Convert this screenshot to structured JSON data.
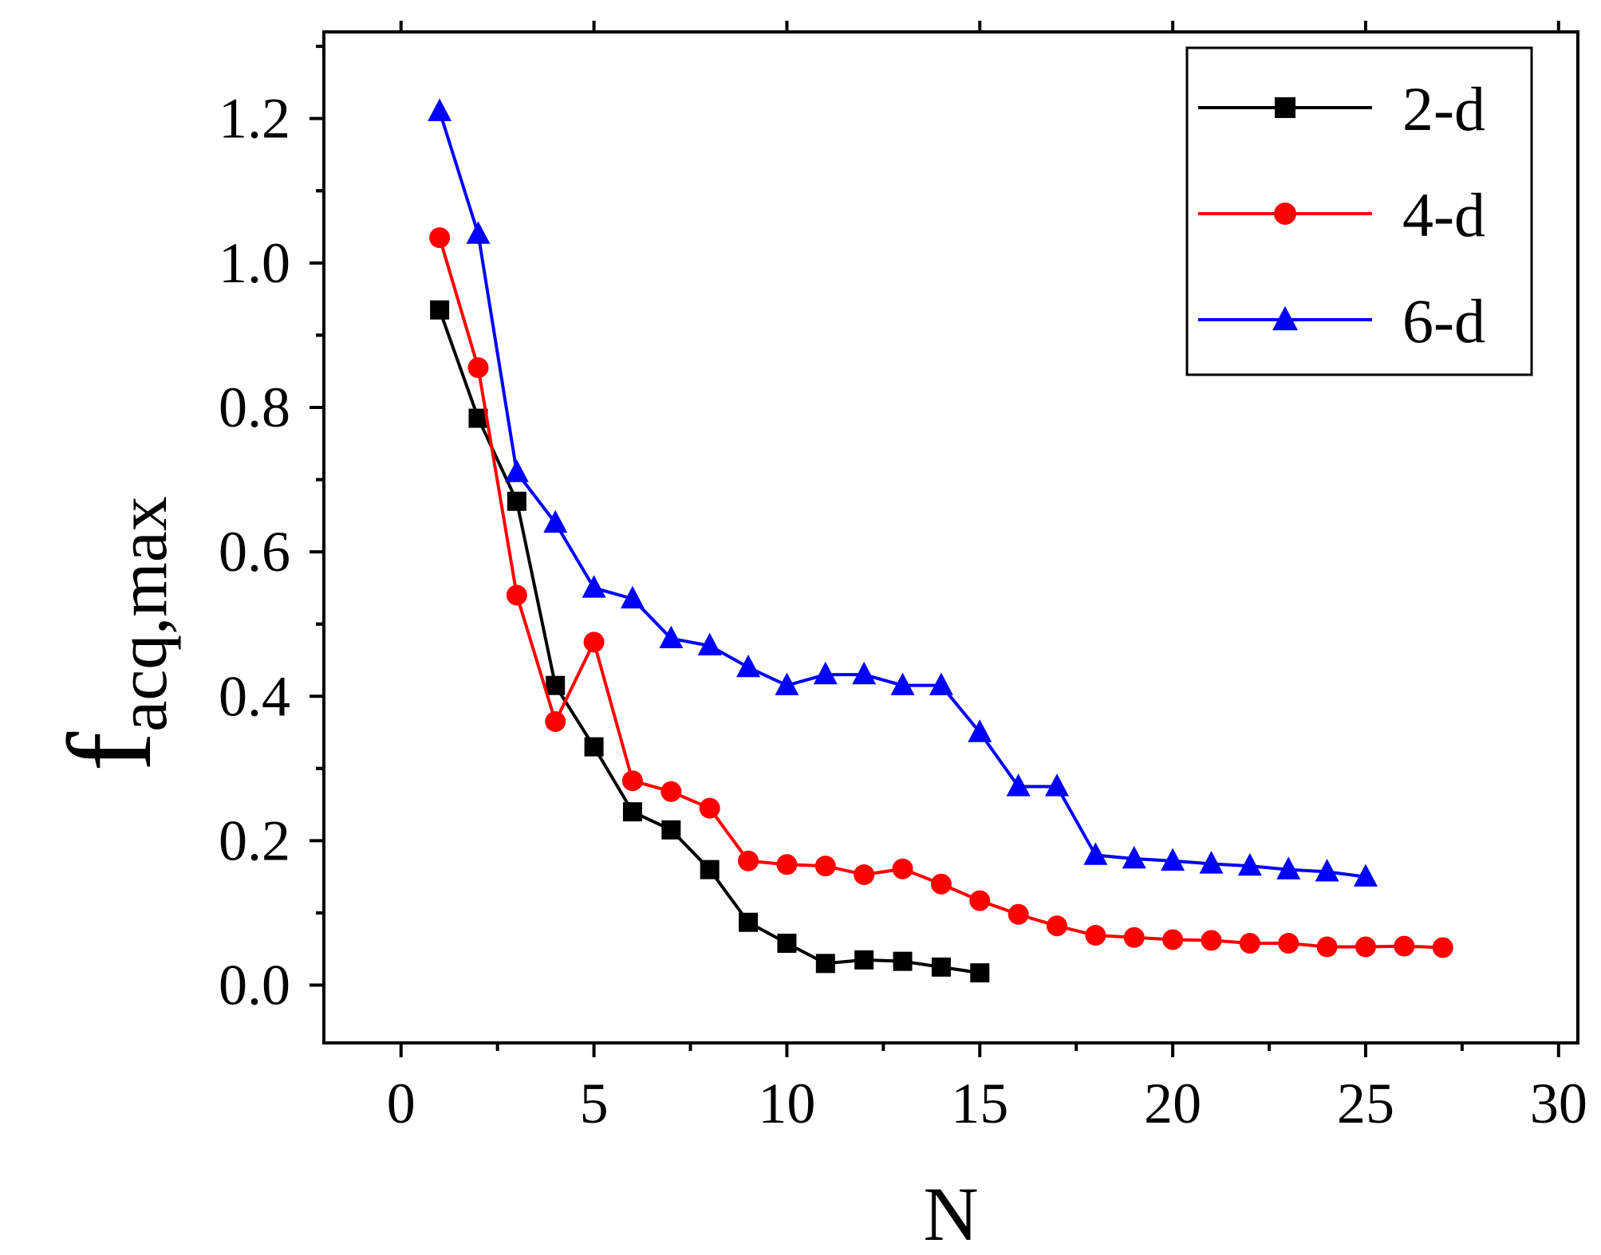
{
  "chart_data": {
    "type": "line",
    "title": "",
    "xlabel": "N",
    "ylabel_main": "f",
    "ylabel_sub": "acq,max",
    "xlim": [
      -2,
      30.5
    ],
    "ylim": [
      -0.08,
      1.32
    ],
    "x_ticks": [
      0,
      5,
      10,
      15,
      20,
      25,
      30
    ],
    "x_tick_labels": [
      "0",
      "5",
      "10",
      "15",
      "20",
      "25",
      "30"
    ],
    "y_ticks": [
      0.0,
      0.2,
      0.4,
      0.6,
      0.8,
      1.0,
      1.2
    ],
    "y_tick_labels": [
      "0.0",
      "0.2",
      "0.4",
      "0.6",
      "0.8",
      "1.0",
      "1.2"
    ],
    "grid": false,
    "legend_position": "top-right",
    "series": [
      {
        "name": "2-d",
        "color": "#000000",
        "marker": "square",
        "x": [
          1,
          2,
          3,
          4,
          5,
          6,
          7,
          8,
          9,
          10,
          11,
          12,
          13,
          14,
          15
        ],
        "values": [
          0.935,
          0.785,
          0.67,
          0.415,
          0.33,
          0.24,
          0.215,
          0.16,
          0.087,
          0.058,
          0.03,
          0.035,
          0.033,
          0.025,
          0.017
        ]
      },
      {
        "name": "4-d",
        "color": "#ff0000",
        "marker": "circle",
        "x": [
          1,
          2,
          3,
          4,
          5,
          6,
          7,
          8,
          9,
          10,
          11,
          12,
          13,
          14,
          15,
          16,
          17,
          18,
          19,
          20,
          21,
          22,
          23,
          24,
          25,
          26,
          27
        ],
        "values": [
          1.035,
          0.855,
          0.54,
          0.365,
          0.475,
          0.283,
          0.268,
          0.245,
          0.172,
          0.167,
          0.165,
          0.153,
          0.161,
          0.14,
          0.117,
          0.098,
          0.082,
          0.069,
          0.066,
          0.063,
          0.062,
          0.058,
          0.058,
          0.053,
          0.053,
          0.054,
          0.052
        ]
      },
      {
        "name": "6-d",
        "color": "#0000ff",
        "marker": "triangle",
        "x": [
          1,
          2,
          3,
          4,
          5,
          6,
          7,
          8,
          9,
          10,
          11,
          12,
          13,
          14,
          15,
          16,
          17,
          18,
          19,
          20,
          21,
          22,
          23,
          24,
          25
        ],
        "values": [
          1.21,
          1.04,
          0.71,
          0.64,
          0.55,
          0.535,
          0.48,
          0.47,
          0.44,
          0.415,
          0.43,
          0.43,
          0.415,
          0.415,
          0.35,
          0.275,
          0.275,
          0.18,
          0.175,
          0.172,
          0.168,
          0.165,
          0.16,
          0.157,
          0.15
        ]
      }
    ]
  }
}
